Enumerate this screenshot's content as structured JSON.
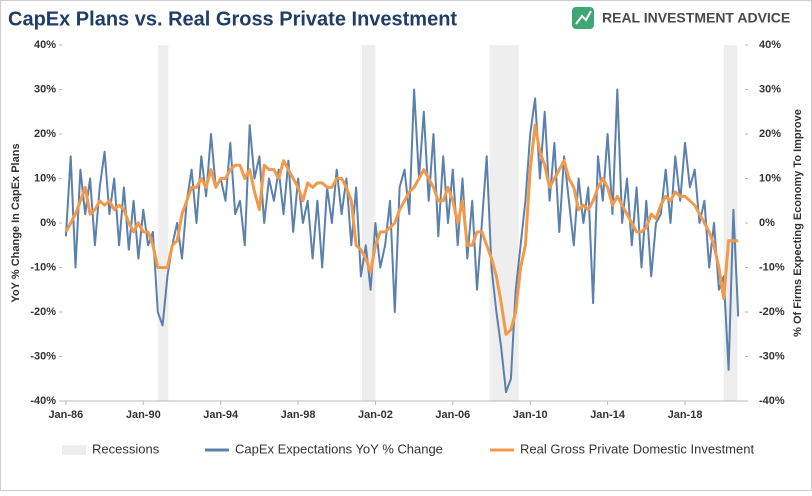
{
  "chart_data": {
    "type": "line",
    "title": "CapEx Plans vs. Real Gross Private Investment",
    "brand": "REAL INVESTMENT ADVICE",
    "ylabel": "YoY % Change In CapEx Plans",
    "y2label": "% Of Firms Expecting Economy To Improve",
    "xlim": [
      1985.8,
      2021.1
    ],
    "xticks": [
      {
        "value": 1986,
        "label": "Jan-86"
      },
      {
        "value": 1990,
        "label": "Jan-90"
      },
      {
        "value": 1994,
        "label": "Jan-94"
      },
      {
        "value": 1998,
        "label": "Jan-98"
      },
      {
        "value": 2002,
        "label": "Jan-02"
      },
      {
        "value": 2006,
        "label": "Jan-06"
      },
      {
        "value": 2010,
        "label": "Jan-10"
      },
      {
        "value": 2014,
        "label": "Jan-14"
      },
      {
        "value": 2018,
        "label": "Jan-18"
      }
    ],
    "ylim": [
      -40,
      40
    ],
    "yticks": [
      {
        "value": -40,
        "label": "-40%"
      },
      {
        "value": -30,
        "label": "-30%"
      },
      {
        "value": -20,
        "label": "-20%"
      },
      {
        "value": -10,
        "label": "-10%"
      },
      {
        "value": 0,
        "label": "0%"
      },
      {
        "value": 10,
        "label": "10%"
      },
      {
        "value": 20,
        "label": "20%"
      },
      {
        "value": 30,
        "label": "30%"
      },
      {
        "value": 40,
        "label": "40%"
      }
    ],
    "y2lim": [
      -40,
      40
    ],
    "y2ticks": [
      {
        "value": -40,
        "label": "-40%"
      },
      {
        "value": -30,
        "label": "-30%"
      },
      {
        "value": -20,
        "label": "-20%"
      },
      {
        "value": -10,
        "label": "-10%"
      },
      {
        "value": 0,
        "label": "0%"
      },
      {
        "value": 10,
        "label": "10%"
      },
      {
        "value": 20,
        "label": "20%"
      },
      {
        "value": 30,
        "label": "30%"
      },
      {
        "value": 40,
        "label": "40%"
      }
    ],
    "recessions": {
      "name": "Recessions",
      "color": "#eeeeee",
      "spans": [
        [
          1990.75,
          1991.3
        ],
        [
          2001.3,
          2002.0
        ],
        [
          2007.9,
          2009.4
        ],
        [
          2020.0,
          2020.7
        ]
      ]
    },
    "x": [
      1986,
      1986.25,
      1986.5,
      1986.75,
      1987,
      1987.25,
      1987.5,
      1987.75,
      1988,
      1988.25,
      1988.5,
      1988.75,
      1989,
      1989.25,
      1989.5,
      1989.75,
      1990,
      1990.25,
      1990.5,
      1990.75,
      1991,
      1991.25,
      1991.5,
      1991.75,
      1992,
      1992.25,
      1992.5,
      1992.75,
      1993,
      1993.25,
      1993.5,
      1993.75,
      1994,
      1994.25,
      1994.5,
      1994.75,
      1995,
      1995.25,
      1995.5,
      1995.75,
      1996,
      1996.25,
      1996.5,
      1996.75,
      1997,
      1997.25,
      1997.5,
      1997.75,
      1998,
      1998.25,
      1998.5,
      1998.75,
      1999,
      1999.25,
      1999.5,
      1999.75,
      2000,
      2000.25,
      2000.5,
      2000.75,
      2001,
      2001.25,
      2001.5,
      2001.75,
      2002,
      2002.25,
      2002.5,
      2002.75,
      2003,
      2003.25,
      2003.5,
      2003.75,
      2004,
      2004.25,
      2004.5,
      2004.75,
      2005,
      2005.25,
      2005.5,
      2005.75,
      2006,
      2006.25,
      2006.5,
      2006.75,
      2007,
      2007.25,
      2007.5,
      2007.75,
      2008,
      2008.25,
      2008.5,
      2008.75,
      2009,
      2009.25,
      2009.5,
      2009.75,
      2010,
      2010.25,
      2010.5,
      2010.75,
      2011,
      2011.25,
      2011.5,
      2011.75,
      2012,
      2012.25,
      2012.5,
      2012.75,
      2013,
      2013.25,
      2013.5,
      2013.75,
      2014,
      2014.25,
      2014.5,
      2014.75,
      2015,
      2015.25,
      2015.5,
      2015.75,
      2016,
      2016.25,
      2016.5,
      2016.75,
      2017,
      2017.25,
      2017.5,
      2017.75,
      2018,
      2018.25,
      2018.5,
      2018.75,
      2019,
      2019.25,
      2019.5,
      2019.75,
      2020,
      2020.25,
      2020.5,
      2020.75
    ],
    "series": [
      {
        "name": "CapEx Expectations YoY % Change",
        "color": "#5b80ad",
        "axis": "y",
        "values": [
          -3,
          15,
          -10,
          12,
          2,
          10,
          -5,
          8,
          16,
          2,
          10,
          -5,
          8,
          -6,
          5,
          -8,
          3,
          -5,
          -2,
          -20,
          -23,
          -12,
          -5,
          0,
          -8,
          5,
          12,
          0,
          15,
          6,
          20,
          8,
          10,
          5,
          18,
          2,
          5,
          -5,
          22,
          10,
          15,
          0,
          10,
          5,
          12,
          2,
          14,
          -2,
          10,
          0,
          5,
          -8,
          5,
          -10,
          8,
          0,
          12,
          2,
          10,
          -5,
          8,
          -12,
          -5,
          -15,
          0,
          -10,
          -5,
          5,
          -20,
          8,
          12,
          2,
          30,
          10,
          25,
          5,
          20,
          -3,
          15,
          0,
          12,
          -5,
          10,
          -8,
          5,
          -15,
          0,
          15,
          -10,
          -20,
          -28,
          -38,
          -35,
          -15,
          -5,
          5,
          20,
          28,
          10,
          25,
          5,
          18,
          -2,
          15,
          5,
          -5,
          10,
          0,
          8,
          -18,
          15,
          5,
          20,
          2,
          30,
          0,
          10,
          -5,
          8,
          -10,
          5,
          -12,
          0,
          2,
          12,
          0,
          15,
          5,
          18,
          8,
          12,
          0,
          5,
          -10,
          0,
          -15,
          -12,
          -33,
          3,
          -21
        ]
      },
      {
        "name": "Real Gross Private Domestic Investment",
        "color": "#f3994a",
        "axis": "y2",
        "values": [
          -2,
          0,
          2,
          5,
          8,
          2,
          3,
          5,
          4,
          5,
          3,
          4,
          3,
          0,
          -2,
          0,
          -2,
          -2,
          -5,
          -10,
          -10,
          -10,
          -5,
          -4,
          2,
          5,
          8,
          8,
          10,
          8,
          12,
          8,
          10,
          10,
          12,
          13,
          13,
          10,
          12,
          7,
          3,
          13,
          12,
          12,
          10,
          14,
          12,
          10,
          8,
          5,
          9,
          8,
          9,
          9,
          8,
          8,
          10,
          10,
          8,
          5,
          -5,
          -6,
          -8,
          -11,
          -5,
          -2,
          -2,
          -1,
          0,
          3,
          5,
          7,
          8,
          10,
          12,
          10,
          8,
          5,
          5,
          8,
          5,
          0,
          5,
          -5,
          -5,
          -2,
          -2,
          -5,
          -8,
          -12,
          -18,
          -25,
          -24,
          -20,
          -10,
          -5,
          12,
          22,
          16,
          13,
          8,
          10,
          12,
          14,
          10,
          8,
          3,
          4,
          3,
          5,
          8,
          10,
          8,
          4,
          6,
          4,
          2,
          0,
          -2,
          -2,
          -1,
          2,
          1,
          4,
          6,
          5,
          7,
          6,
          6,
          5,
          4,
          2,
          0,
          -2,
          -5,
          -10,
          -17,
          -4,
          -4,
          -4
        ]
      }
    ]
  }
}
